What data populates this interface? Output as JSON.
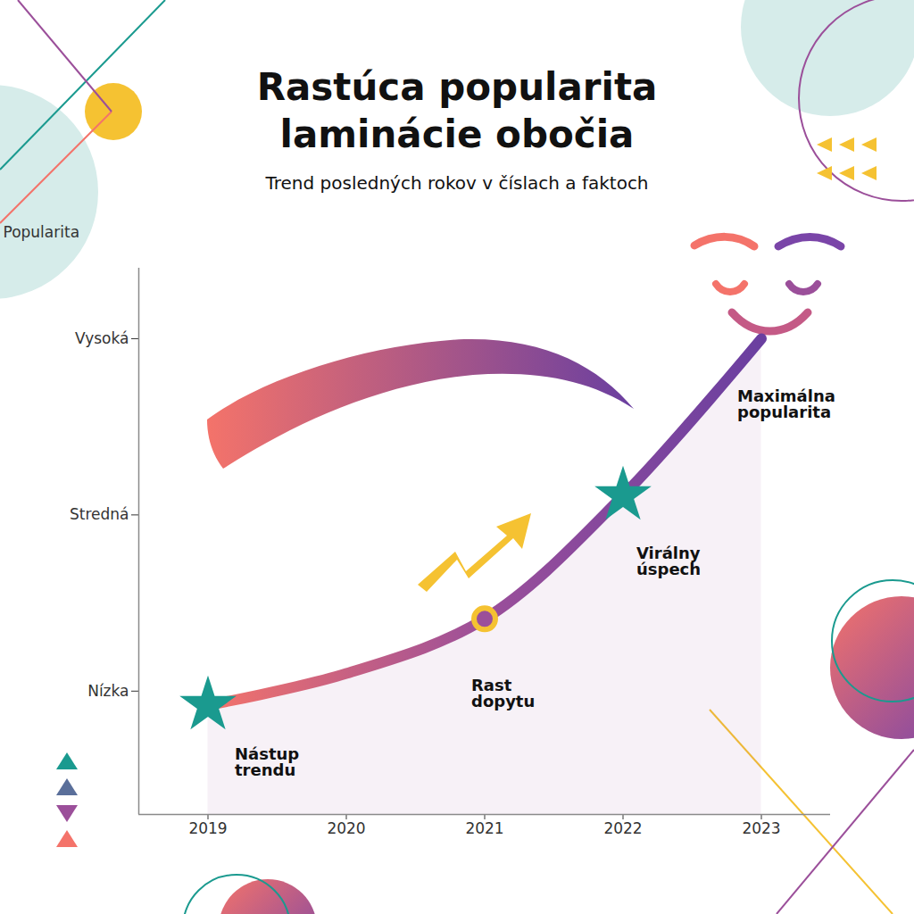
{
  "chart_data": {
    "type": "line",
    "title": "Rastúca popularita laminácie obočia",
    "subtitle": "Trend posledných rokov v číslach a faktoch",
    "y_label": "Popularita",
    "x": [
      2019,
      2020,
      2021,
      2022,
      2023
    ],
    "values": [
      0.92,
      1.1,
      1.41,
      2.11,
      3.0
    ],
    "color": "#9b4f9a",
    "xlim": [
      2018.5,
      2023.5
    ],
    "xticks": [
      2019,
      2020,
      2021,
      2022,
      2023
    ],
    "ylim": [
      0.3,
      3.4
    ],
    "yticks": [
      {
        "value": 1,
        "label": "Nízka"
      },
      {
        "value": 2,
        "label": "Stredná"
      },
      {
        "value": 3,
        "label": "Vysoká"
      }
    ],
    "grid": false,
    "annotations": [
      {
        "x": 2019,
        "y": 0.92,
        "text": "Nástup trendu"
      },
      {
        "x": 2021,
        "y": 1.41,
        "text": "Rast dopytu"
      },
      {
        "x": 2022,
        "y": 2.11,
        "text": "Virálny úspech"
      },
      {
        "x": 2023,
        "y": 3.0,
        "text": "Maximálna popularita"
      }
    ]
  }
}
